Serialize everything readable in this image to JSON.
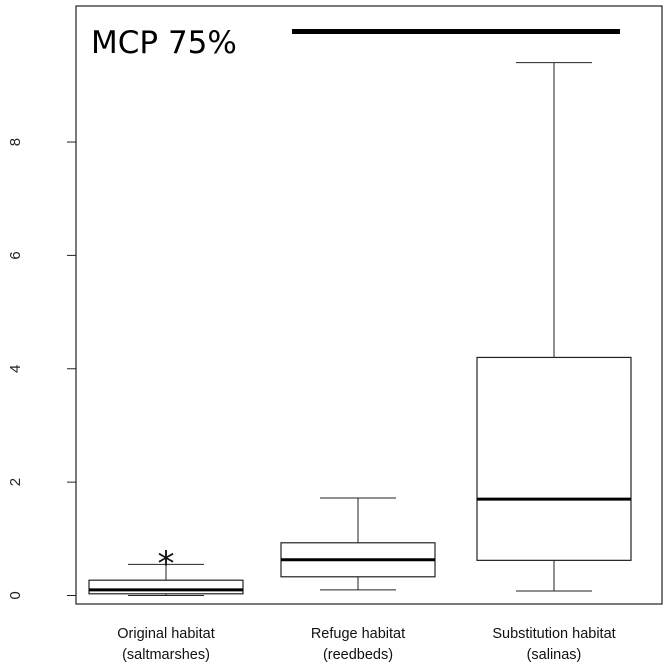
{
  "chart_data": {
    "type": "boxplot",
    "title": "MCP 75%",
    "xlabel": "",
    "ylabel": "",
    "ylim": [
      -0.15,
      10.4
    ],
    "yticks": [
      0,
      2,
      4,
      6,
      8
    ],
    "categories": [
      {
        "line1": "Original habitat",
        "line2": "(saltmarshes)"
      },
      {
        "line1": "Refuge habitat",
        "line2": "(reedbeds)"
      },
      {
        "line1": "Substitution habitat",
        "line2": "(salinas)"
      }
    ],
    "boxes": [
      {
        "whisker_low": 0.0,
        "q1": 0.03,
        "median": 0.1,
        "q3": 0.27,
        "whisker_high": 0.55
      },
      {
        "whisker_low": 0.1,
        "q1": 0.33,
        "median": 0.63,
        "q3": 0.93,
        "whisker_high": 1.72
      },
      {
        "whisker_low": 0.08,
        "q1": 0.62,
        "median": 1.7,
        "q3": 4.2,
        "whisker_high": 9.4
      }
    ],
    "annotations": [
      {
        "type": "asterisk",
        "text": "*",
        "category_index": 0,
        "y": 0.75
      },
      {
        "type": "significance-bar",
        "from_category": 1,
        "to_category": 2,
        "y": 9.95
      }
    ],
    "grid": false,
    "legend": "none"
  }
}
